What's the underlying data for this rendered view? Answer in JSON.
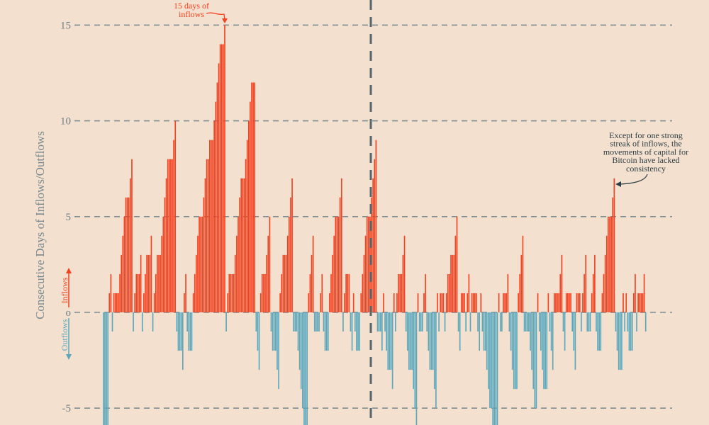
{
  "chart_data": {
    "type": "bar",
    "ylabel": "Consecutive Days of Inflows/Outflows",
    "inflow_label": "Inflows",
    "outflow_label": "Outflows",
    "yticks": [
      15,
      10,
      5,
      0,
      -5
    ],
    "ytick_labels": [
      "15",
      "10",
      "5",
      "o",
      "-5"
    ],
    "ylim": [
      -5.85,
      16.3
    ],
    "grid": "horizontal dashed",
    "colors": {
      "inflow": "#f4411f",
      "outflow": "#5ba8bd",
      "background": "#f3e0cf",
      "grid": "#7d8c90"
    },
    "annotations": [
      {
        "lines": [
          "15 days of",
          "inflows"
        ],
        "color": "#f4411f"
      },
      {
        "lines": [
          "Except for one strong",
          "streak of inflows, the",
          "movements of capital for",
          "Bitcoin have lacked",
          "consistency"
        ],
        "color": "#2e3e45"
      }
    ],
    "values": [
      -6,
      -6,
      -7,
      -7,
      1,
      2,
      -1,
      1,
      1,
      1,
      1,
      2,
      3,
      4,
      5,
      6,
      6,
      6,
      7,
      8,
      -1,
      1,
      2,
      2,
      2,
      3,
      -1,
      1,
      2,
      3,
      3,
      3,
      4,
      -1,
      1,
      2,
      3,
      3,
      3,
      4,
      5,
      6,
      7,
      8,
      8,
      8,
      8,
      9,
      10,
      -1,
      -2,
      -2,
      -2,
      -3,
      1,
      2,
      -1,
      -2,
      -2,
      -2,
      1,
      2,
      3,
      4,
      5,
      5,
      5,
      6,
      7,
      8,
      8,
      9,
      9,
      9,
      10,
      11,
      12,
      13,
      14,
      14,
      14,
      15,
      -1,
      1,
      2,
      2,
      2,
      2,
      3,
      4,
      5,
      6,
      7,
      7,
      7,
      8,
      9,
      10,
      11,
      12,
      12,
      12,
      -1,
      -2,
      -3,
      1,
      2,
      2,
      2,
      3,
      4,
      5,
      -1,
      -2,
      -2,
      -2,
      -3,
      -4,
      1,
      2,
      3,
      3,
      3,
      4,
      5,
      6,
      7,
      -1,
      -1,
      -1,
      -2,
      -3,
      -4,
      -5,
      -6,
      -6,
      -6,
      1,
      2,
      3,
      4,
      -1,
      -1,
      -1,
      -1,
      1,
      2,
      -1,
      -2,
      -2,
      -2,
      1,
      2,
      3,
      4,
      5,
      5,
      5,
      6,
      7,
      -1,
      1,
      2,
      2,
      2,
      -1,
      -2,
      1,
      -1,
      -2,
      -2,
      -2,
      1,
      2,
      3,
      4,
      5,
      5,
      5,
      6,
      7,
      8,
      9,
      -1,
      -1,
      -1,
      -2,
      1,
      -1,
      -2,
      -3,
      -3,
      -3,
      -4,
      1,
      -1,
      1,
      2,
      2,
      2,
      3,
      4,
      -1,
      -2,
      -3,
      -3,
      -3,
      -4,
      -5,
      -6,
      1,
      -1,
      -1,
      -1,
      1,
      2,
      -1,
      -2,
      -3,
      -3,
      -3,
      -4,
      -5,
      1,
      -1,
      1,
      1,
      1,
      -1,
      1,
      2,
      2,
      3,
      3,
      3,
      4,
      5,
      -1,
      -2,
      1,
      1,
      1,
      -1,
      1,
      2,
      -1,
      1,
      1,
      1,
      1,
      -1,
      -2,
      1,
      -1,
      -2,
      -2,
      -3,
      -4,
      -5,
      -5,
      -6,
      -6,
      -6,
      -6,
      1,
      -1,
      -1,
      1,
      1,
      1,
      2,
      -1,
      -2,
      -3,
      -4,
      -4,
      -4,
      1,
      2,
      3,
      4,
      -1,
      -1,
      -1,
      -1,
      -2,
      -3,
      -4,
      -5,
      -5,
      1,
      -1,
      -2,
      -3,
      -4,
      -4,
      -4,
      1,
      -1,
      -2,
      -3,
      1,
      1,
      1,
      1,
      2,
      3,
      -1,
      -2,
      1,
      1,
      1,
      1,
      -1,
      -2,
      -3,
      1,
      1,
      1,
      -1,
      1,
      2,
      3,
      -1,
      -1,
      -1,
      1,
      2,
      3,
      -1,
      -2,
      -2,
      -2,
      1,
      2,
      3,
      4,
      5,
      5,
      5,
      6,
      7,
      -1,
      -2,
      -3,
      -3,
      -3,
      1,
      -1,
      1,
      -1,
      -2,
      -2,
      -2,
      1,
      2,
      -1,
      1,
      1,
      1,
      1,
      2,
      -1
    ]
  }
}
